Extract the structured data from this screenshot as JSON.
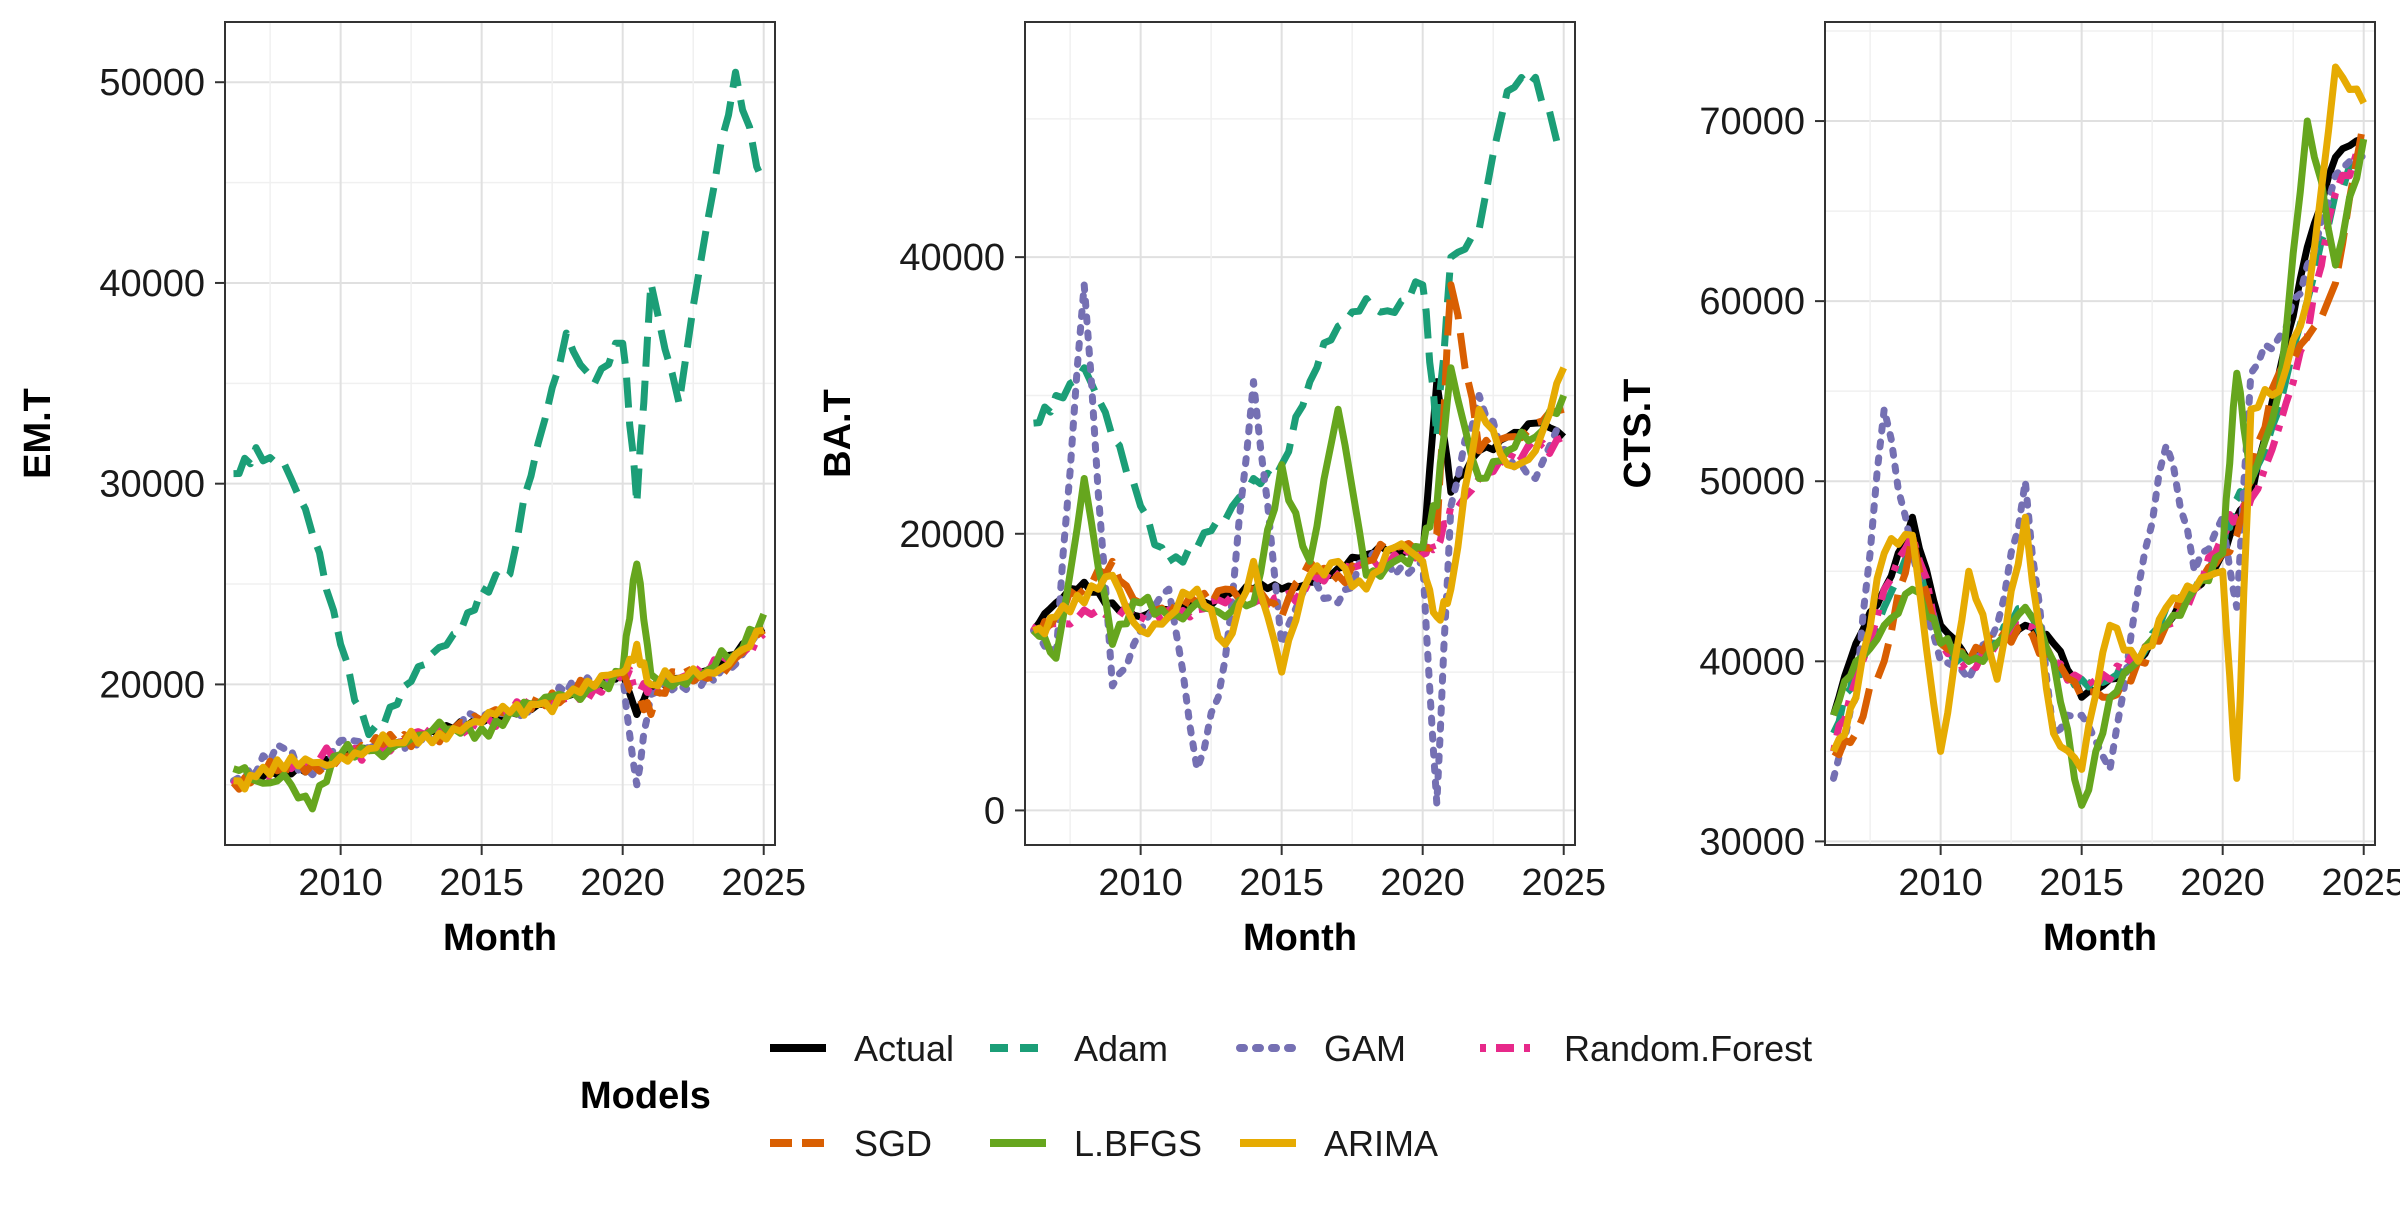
{
  "chart_data": [
    {
      "type": "line",
      "ylabel": "EM.T",
      "xlabel": "Month",
      "xlim": [
        2005.9,
        2025.4
      ],
      "ylim": [
        12000,
        53000
      ],
      "xticks": [
        2010,
        2015,
        2020,
        2025
      ],
      "yticks": [
        20000,
        30000,
        40000,
        50000
      ],
      "x": [
        2006.2,
        2007,
        2008,
        2009,
        2010,
        2011,
        2012,
        2013,
        2014,
        2015,
        2016,
        2017,
        2018,
        2019,
        2020,
        2020.5,
        2021,
        2022,
        2023,
        2024,
        2025
      ],
      "series": [
        {
          "name": "Actual",
          "values": [
            15000,
            15300,
            15700,
            16000,
            16400,
            16800,
            17100,
            17500,
            17800,
            18100,
            18600,
            19000,
            19400,
            19900,
            20700,
            18500,
            19800,
            20300,
            20700,
            21500,
            22800
          ]
        },
        {
          "name": "Adam",
          "values": [
            30500,
            31800,
            31000,
            27500,
            22000,
            17500,
            19000,
            21000,
            22500,
            24800,
            25500,
            32000,
            37500,
            35000,
            37000,
            29000,
            40000,
            34000,
            43000,
            50500,
            45000
          ]
        },
        {
          "name": "GAM",
          "values": [
            15200,
            15600,
            16800,
            15500,
            17200,
            16800,
            17000,
            17600,
            17900,
            18400,
            18600,
            19000,
            19600,
            19900,
            20500,
            15000,
            19500,
            20000,
            20500,
            21000,
            22500
          ]
        },
        {
          "name": "Random.Forest",
          "values": [
            15000,
            15300,
            15900,
            16100,
            16500,
            16800,
            17100,
            17500,
            17800,
            18100,
            18600,
            19000,
            19300,
            19800,
            20500,
            19800,
            20000,
            20300,
            20500,
            21300,
            22500
          ]
        },
        {
          "name": "SGD",
          "values": [
            15100,
            15400,
            15800,
            16000,
            16400,
            16800,
            17100,
            17500,
            17800,
            18200,
            18700,
            19500,
            19400,
            20000,
            20700,
            19500,
            18500,
            20600,
            20300,
            21300,
            22700
          ]
        },
        {
          "name": "L.BFGS",
          "values": [
            15800,
            15200,
            15500,
            13800,
            16500,
            16700,
            17000,
            17500,
            17800,
            17800,
            18600,
            19000,
            19400,
            19900,
            20600,
            26000,
            20500,
            20200,
            20700,
            21500,
            23500
          ]
        },
        {
          "name": "ARIMA",
          "values": [
            15200,
            15400,
            15800,
            16100,
            16400,
            16800,
            17100,
            17500,
            17800,
            18100,
            18600,
            19000,
            19400,
            19900,
            20600,
            22000,
            20000,
            20300,
            20600,
            21500,
            22700
          ]
        }
      ]
    },
    {
      "type": "line",
      "ylabel": "BA.T",
      "xlabel": "Month",
      "xlim": [
        2005.9,
        2025.4
      ],
      "ylim": [
        -2500,
        57000
      ],
      "xticks": [
        2010,
        2015,
        2020,
        2025
      ],
      "yticks": [
        0,
        20000,
        40000
      ],
      "x": [
        2006.2,
        2007,
        2008,
        2009,
        2010,
        2011,
        2012,
        2013,
        2014,
        2015,
        2016,
        2017,
        2018,
        2019,
        2020,
        2020.5,
        2021,
        2022,
        2023,
        2024,
        2025
      ],
      "series": [
        {
          "name": "Actual",
          "values": [
            13000,
            15000,
            16500,
            15000,
            14000,
            14500,
            15000,
            15500,
            16000,
            16000,
            16500,
            17500,
            18500,
            19000,
            18500,
            31000,
            23000,
            26000,
            27000,
            28000,
            27000
          ]
        },
        {
          "name": "Adam",
          "values": [
            28000,
            30000,
            32000,
            27000,
            22000,
            18000,
            19000,
            21000,
            24000,
            25000,
            31000,
            35000,
            37000,
            36000,
            38000,
            27000,
            40000,
            42000,
            52000,
            53000,
            48000
          ]
        },
        {
          "name": "GAM",
          "values": [
            13000,
            11000,
            38000,
            9000,
            13000,
            16000,
            3000,
            11000,
            31000,
            12000,
            17000,
            15000,
            18000,
            17000,
            18000,
            500,
            22000,
            30000,
            26000,
            24000,
            28000
          ]
        },
        {
          "name": "Random.Forest",
          "values": [
            13000,
            13500,
            14500,
            14000,
            14000,
            14500,
            14500,
            15000,
            15000,
            15500,
            16000,
            17000,
            18000,
            18500,
            18500,
            19000,
            22000,
            24000,
            25000,
            26000,
            27000
          ]
        },
        {
          "name": "SGD",
          "values": [
            13000,
            14000,
            16000,
            18000,
            15000,
            14000,
            15000,
            16000,
            16000,
            14000,
            18000,
            17000,
            18000,
            19000,
            19000,
            20000,
            38000,
            26000,
            27000,
            28000,
            29000
          ]
        },
        {
          "name": "L.BFGS",
          "values": [
            13000,
            11000,
            24000,
            12000,
            15000,
            14000,
            15000,
            14000,
            15000,
            25000,
            18000,
            29000,
            17000,
            18000,
            19000,
            22000,
            32000,
            24000,
            26000,
            27000,
            30000
          ]
        },
        {
          "name": "ARIMA",
          "values": [
            13000,
            14000,
            15000,
            17000,
            13000,
            14000,
            16000,
            12000,
            18000,
            10000,
            17000,
            18000,
            16000,
            19000,
            18000,
            14000,
            16000,
            29000,
            25000,
            26000,
            32000
          ]
        }
      ]
    },
    {
      "type": "line",
      "ylabel": "CTS.T",
      "xlabel": "Month",
      "xlim": [
        2005.9,
        2025.4
      ],
      "ylim": [
        29800,
        75500
      ],
      "xticks": [
        2010,
        2015,
        2020,
        2025
      ],
      "yticks": [
        30000,
        40000,
        50000,
        60000,
        70000
      ],
      "x": [
        2006.2,
        2007,
        2008,
        2009,
        2010,
        2011,
        2012,
        2013,
        2014,
        2015,
        2016,
        2017,
        2018,
        2019,
        2020,
        2020.5,
        2021,
        2022,
        2023,
        2024,
        2025
      ],
      "series": [
        {
          "name": "Actual",
          "values": [
            37000,
            41000,
            44000,
            48000,
            42000,
            40000,
            41000,
            42000,
            41000,
            38000,
            39000,
            40000,
            42000,
            44000,
            46000,
            48000,
            49000,
            56000,
            63000,
            68000,
            69000
          ]
        },
        {
          "name": "Adam",
          "values": [
            36000,
            40000,
            43000,
            46000,
            41000,
            40000,
            41000,
            43000,
            40000,
            39000,
            39000,
            40000,
            43000,
            44000,
            46000,
            49000,
            50000,
            54000,
            60000,
            66000,
            69000
          ]
        },
        {
          "name": "GAM",
          "values": [
            33500,
            38000,
            54000,
            46000,
            40000,
            39000,
            42000,
            50000,
            36000,
            37000,
            34000,
            44000,
            52000,
            45000,
            48000,
            43000,
            56000,
            58000,
            62000,
            67000,
            68000
          ]
        },
        {
          "name": "Random.Forest",
          "values": [
            35000,
            39000,
            44000,
            47000,
            41000,
            40000,
            41000,
            42000,
            40000,
            39000,
            39000,
            40000,
            42000,
            44000,
            47000,
            48000,
            49000,
            53000,
            58000,
            66000,
            69000
          ]
        },
        {
          "name": "SGD",
          "values": [
            35000,
            36000,
            40000,
            47000,
            41000,
            40000,
            41000,
            42000,
            40000,
            38000,
            38000,
            40000,
            42000,
            44000,
            46000,
            47000,
            50000,
            56000,
            58000,
            61000,
            70000
          ]
        },
        {
          "name": "L.BFGS",
          "values": [
            37000,
            40000,
            42000,
            44000,
            41000,
            40000,
            41000,
            43000,
            40000,
            32000,
            38000,
            40000,
            42000,
            44000,
            46000,
            56000,
            50000,
            55000,
            70000,
            62000,
            69000
          ]
        },
        {
          "name": "ARIMA",
          "values": [
            35000,
            38000,
            46000,
            47000,
            35000,
            45000,
            39000,
            48000,
            36000,
            34000,
            42000,
            40000,
            43000,
            44000,
            45000,
            33500,
            54000,
            55000,
            60000,
            73000,
            71000
          ]
        }
      ]
    }
  ],
  "legend": {
    "title": "Models",
    "items": [
      {
        "name": "Actual",
        "color": "#000000",
        "dash": "solid"
      },
      {
        "name": "Adam",
        "color": "#1B9E77",
        "dash": "dashed"
      },
      {
        "name": "GAM",
        "color": "#7570B3",
        "dash": "dotted"
      },
      {
        "name": "Random.Forest",
        "color": "#E7298A",
        "dash": "dotdash"
      },
      {
        "name": "SGD",
        "color": "#D95F02",
        "dash": "longdash"
      },
      {
        "name": "L.BFGS",
        "color": "#66A61E",
        "dash": "solid"
      },
      {
        "name": "ARIMA",
        "color": "#E6AB02",
        "dash": "solid"
      }
    ]
  }
}
